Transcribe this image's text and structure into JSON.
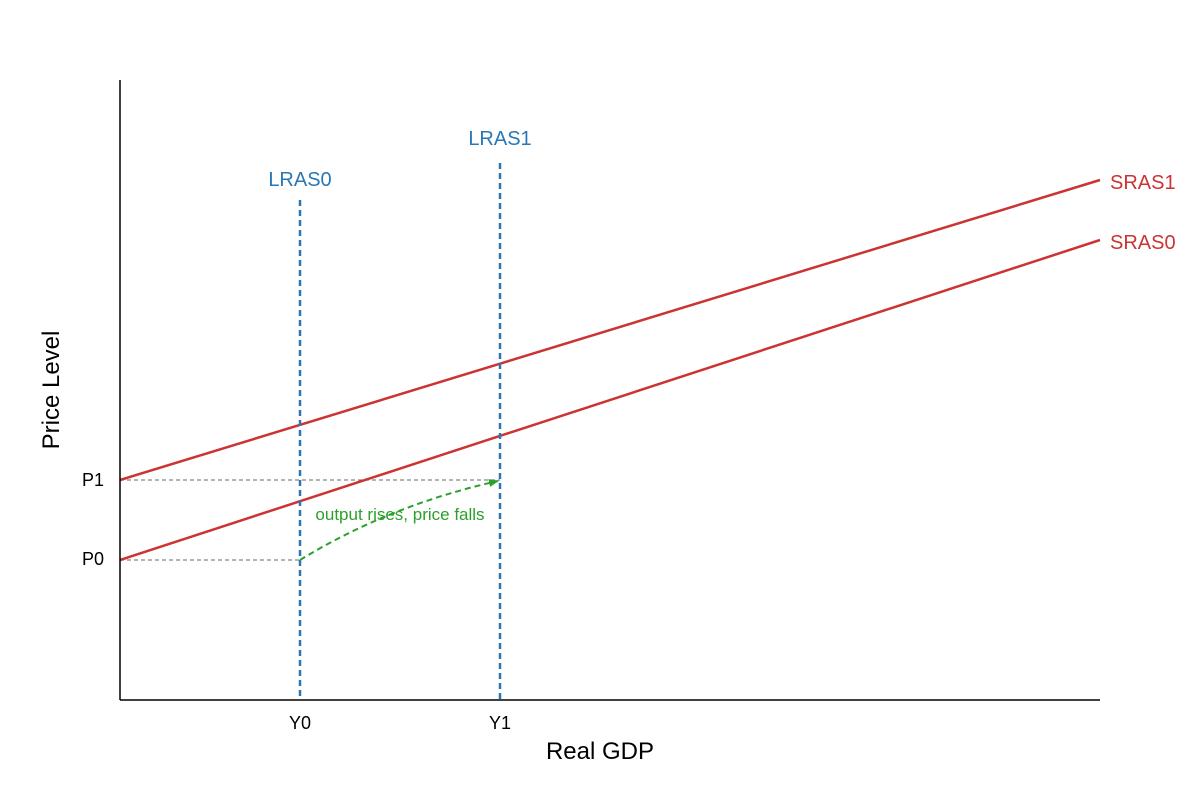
{
  "axes": {
    "x_label": "Real GDP",
    "y_label": "Price Level"
  },
  "x_ticks": [
    "Y0",
    "Y1"
  ],
  "y_ticks": [
    "P0",
    "P1"
  ],
  "curves": {
    "lras0": "LRAS0",
    "lras1": "LRAS1",
    "sras0": "SRAS0",
    "sras1": "SRAS1"
  },
  "annotation": "output rises, price falls"
}
